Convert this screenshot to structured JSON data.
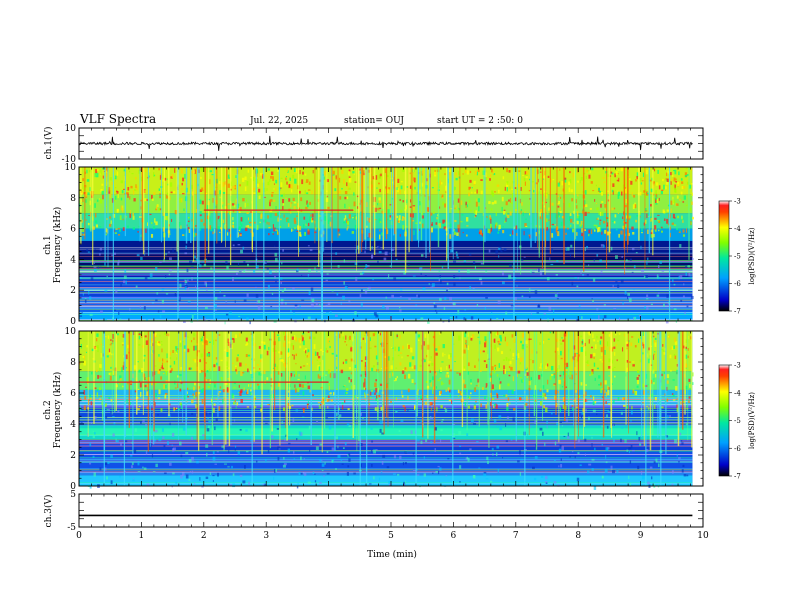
{
  "header": {
    "title": "VLF Spectra",
    "date": "Jul. 22, 2025",
    "station": "station= OUJ",
    "start_ut": "start UT =  2 :50: 0"
  },
  "chart_data": [
    {
      "type": "line",
      "panel": "ch1-waveform",
      "ylabel": "ch.1(V)",
      "ylim": [
        -10,
        10
      ],
      "yticks": [
        "10",
        "-10"
      ],
      "x_range_min": [
        0,
        9.83
      ],
      "baseline": 0
    },
    {
      "type": "heatmap",
      "panel": "ch1-spectrogram",
      "ylabel": "ch.1\nFrequency (kHz)",
      "ylim": [
        0,
        10
      ],
      "yticks": [
        "0",
        "2",
        "4",
        "6",
        "8",
        "10"
      ],
      "x_range_min": [
        0,
        9.83
      ],
      "colorbar": {
        "label": "log(PSD)(V²/Hz)",
        "range": [
          -7,
          -3
        ],
        "ticks": [
          "-3",
          "-4",
          "-5",
          "-6",
          "-7"
        ],
        "scale": "rainbow"
      },
      "features": {
        "quiet_band_khz": [
          3.4,
          5.0
        ],
        "persistent_line_khz": 7.2,
        "persistent_line_min": [
          2.0,
          4.4
        ]
      }
    },
    {
      "type": "heatmap",
      "panel": "ch2-spectrogram",
      "ylabel": "ch.2\nFrequency (kHz)",
      "ylim": [
        0,
        10
      ],
      "yticks": [
        "0",
        "2",
        "4",
        "6",
        "8",
        "10"
      ],
      "x_range_min": [
        0,
        9.83
      ],
      "colorbar": {
        "label": "log(PSD)(V²/Hz)",
        "range": [
          -7,
          -3
        ],
        "ticks": [
          "-3",
          "-4",
          "-5",
          "-6",
          "-7"
        ],
        "scale": "rainbow"
      },
      "features": {
        "bright_band_khz": 3.5,
        "persistent_line_khz": 6.7,
        "persistent_line_min": [
          0,
          4.0
        ]
      }
    },
    {
      "type": "line",
      "panel": "ch3-waveform",
      "ylabel": "ch.3(V)",
      "ylim": [
        -5,
        5
      ],
      "yticks": [
        "5",
        "-5"
      ],
      "x_range_min": [
        0,
        9.83
      ],
      "baseline": -1.5
    }
  ],
  "xaxis": {
    "label": "Time (min)",
    "range": [
      0,
      10
    ],
    "ticks": [
      "0",
      "1",
      "2",
      "3",
      "4",
      "5",
      "6",
      "7",
      "8",
      "9",
      "10"
    ]
  }
}
